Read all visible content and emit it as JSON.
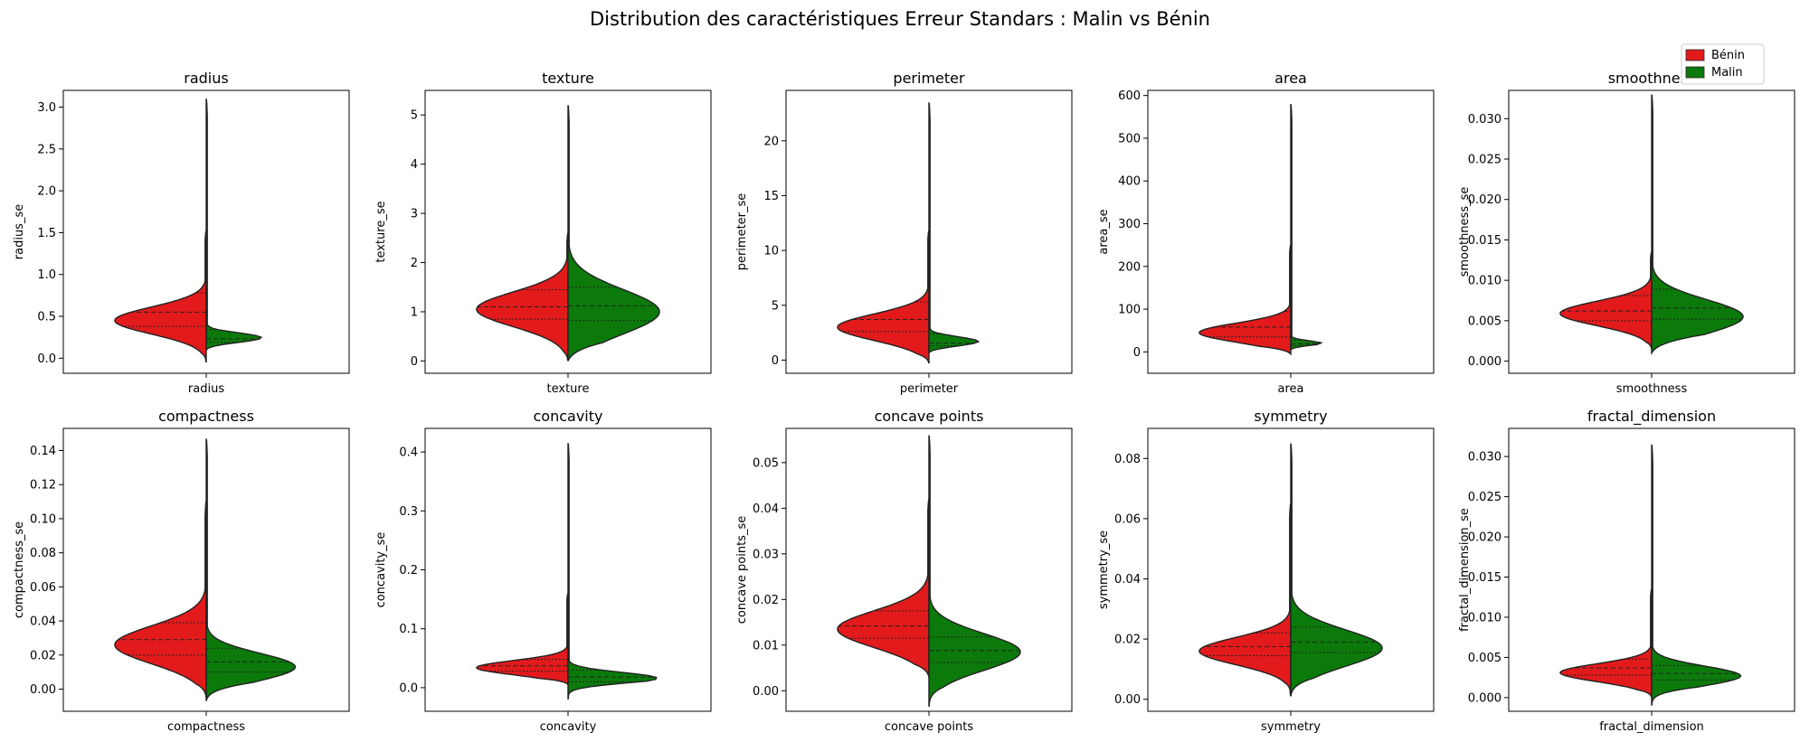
{
  "figure": {
    "title": "Distribution des caractéristiques Erreur Standars : Malin vs Bénin"
  },
  "legend": {
    "placement": "top-right",
    "items": [
      {
        "label": "Bénin",
        "color": "#e31a1c"
      },
      {
        "label": "Malin",
        "color": "#0b7a0b"
      }
    ]
  },
  "colors": {
    "benin": "#e31a1c",
    "malin": "#0b7a0b",
    "outline": "#222222"
  },
  "chart_data": [
    {
      "type": "violin",
      "title": "radius",
      "xlabel": "radius",
      "ylabel": "radius_se",
      "ylim": [
        -0.18,
        3.2
      ],
      "ticks": [
        0.0,
        0.5,
        1.0,
        1.5,
        2.0,
        2.5,
        3.0
      ],
      "tick_labels": [
        "0.0",
        "0.5",
        "1.0",
        "1.5",
        "2.0",
        "2.5",
        "3.0"
      ],
      "benin": {
        "min": -0.05,
        "max": 1.52,
        "width": 0.8,
        "peak": 0.45,
        "sigma": 0.16,
        "quartiles": [
          0.38,
          0.55,
          0.78
        ]
      },
      "malin": {
        "min": 0.1,
        "max": 3.1,
        "width": 0.78,
        "peak": 0.22,
        "sigma": 0.06,
        "quartiles": [
          0.19,
          0.23,
          0.34
        ]
      }
    },
    {
      "type": "violin",
      "title": "texture",
      "xlabel": "texture",
      "ylabel": "texture_se",
      "ylim": [
        -0.25,
        5.5
      ],
      "ticks": [
        0,
        1,
        2,
        3,
        4,
        5
      ],
      "tick_labels": [
        "0",
        "1",
        "2",
        "3",
        "4",
        "5"
      ],
      "benin": {
        "min": 0.0,
        "max": 2.6,
        "width": 0.8,
        "peak": 1.05,
        "sigma": 0.35,
        "quartiles": [
          0.85,
          1.1,
          1.45
        ]
      },
      "malin": {
        "min": 0.0,
        "max": 5.2,
        "width": 0.8,
        "peak": 1.0,
        "sigma": 0.45,
        "quartiles": [
          0.82,
          1.12,
          1.5
        ]
      }
    },
    {
      "type": "violin",
      "title": "perimeter",
      "xlabel": "perimeter",
      "ylabel": "perimeter_se",
      "ylim": [
        -1.2,
        24.6
      ],
      "ticks": [
        0,
        5,
        10,
        15,
        20
      ],
      "tick_labels": [
        "0",
        "5",
        "10",
        "15",
        "20"
      ],
      "benin": {
        "min": -0.3,
        "max": 11.8,
        "width": 0.8,
        "peak": 3.0,
        "sigma": 1.2,
        "quartiles": [
          2.6,
          3.7,
          5.3
        ]
      },
      "malin": {
        "min": 0.7,
        "max": 23.5,
        "width": 0.78,
        "peak": 1.5,
        "sigma": 0.45,
        "quartiles": [
          1.3,
          1.55,
          2.4
        ]
      }
    },
    {
      "type": "violin",
      "title": "area",
      "xlabel": "area",
      "ylabel": "area_se",
      "ylim": [
        -50,
        612
      ],
      "ticks": [
        0,
        100,
        200,
        300,
        400,
        500,
        600
      ],
      "tick_labels": [
        "0",
        "100",
        "200",
        "300",
        "400",
        "500",
        "600"
      ],
      "benin": {
        "min": -5,
        "max": 250,
        "width": 0.8,
        "peak": 45,
        "sigma": 22,
        "quartiles": [
          35,
          58,
          95
        ]
      },
      "malin": {
        "min": 5,
        "max": 580,
        "width": 0.78,
        "peak": 18,
        "sigma": 6,
        "quartiles": [
          15,
          19,
          28
        ]
      }
    },
    {
      "type": "violin",
      "title": "smoothness",
      "xlabel": "smoothness",
      "ylabel": "smoothness_se",
      "ylim": [
        -0.0015,
        0.0335
      ],
      "ticks": [
        0.0,
        0.005,
        0.01,
        0.015,
        0.02,
        0.025,
        0.03
      ],
      "tick_labels": [
        "0.000",
        "0.005",
        "0.010",
        "0.015",
        "0.020",
        "0.025",
        "0.030"
      ],
      "benin": {
        "min": 0.0015,
        "max": 0.0135,
        "width": 0.8,
        "peak": 0.0059,
        "sigma": 0.0015,
        "quartiles": [
          0.005,
          0.0062,
          0.0081
        ]
      },
      "malin": {
        "min": 0.001,
        "max": 0.033,
        "width": 0.8,
        "peak": 0.0055,
        "sigma": 0.0021,
        "quartiles": [
          0.0052,
          0.0066,
          0.0089
        ]
      }
    },
    {
      "type": "violin",
      "title": "compactness",
      "xlabel": "compactness",
      "ylabel": "compactness_se",
      "ylim": [
        -0.013,
        0.153
      ],
      "ticks": [
        0.0,
        0.02,
        0.04,
        0.06,
        0.08,
        0.1,
        0.12,
        0.14
      ],
      "tick_labels": [
        "0.00",
        "0.02",
        "0.04",
        "0.06",
        "0.08",
        "0.10",
        "0.12",
        "0.14"
      ],
      "benin": {
        "min": -0.005,
        "max": 0.11,
        "width": 0.8,
        "peak": 0.026,
        "sigma": 0.011,
        "quartiles": [
          0.02,
          0.029,
          0.039
        ]
      },
      "malin": {
        "min": -0.007,
        "max": 0.147,
        "width": 0.78,
        "peak": 0.013,
        "sigma": 0.008,
        "quartiles": [
          0.01,
          0.016,
          0.024
        ]
      }
    },
    {
      "type": "violin",
      "title": "concavity",
      "xlabel": "concavity",
      "ylabel": "concavity_se",
      "ylim": [
        -0.04,
        0.44
      ],
      "ticks": [
        0.0,
        0.1,
        0.2,
        0.3,
        0.4
      ],
      "tick_labels": [
        "0.0",
        "0.1",
        "0.2",
        "0.3",
        "0.4"
      ],
      "benin": {
        "min": 0.005,
        "max": 0.16,
        "width": 0.8,
        "peak": 0.034,
        "sigma": 0.012,
        "quartiles": [
          0.028,
          0.037,
          0.048
        ]
      },
      "malin": {
        "min": -0.02,
        "max": 0.415,
        "width": 0.78,
        "peak": 0.016,
        "sigma": 0.01,
        "quartiles": [
          0.01,
          0.018,
          0.03
        ]
      }
    },
    {
      "type": "violin",
      "title": "concave points",
      "xlabel": "concave points",
      "ylabel": "concave points_se",
      "ylim": [
        -0.0045,
        0.0575
      ],
      "ticks": [
        0.0,
        0.01,
        0.02,
        0.03,
        0.04,
        0.05
      ],
      "tick_labels": [
        "0.00",
        "0.01",
        "0.02",
        "0.03",
        "0.04",
        "0.05"
      ],
      "benin": {
        "min": 0.003,
        "max": 0.042,
        "width": 0.8,
        "peak": 0.0135,
        "sigma": 0.004,
        "quartiles": [
          0.0115,
          0.0142,
          0.0175
        ]
      },
      "malin": {
        "min": -0.0035,
        "max": 0.056,
        "width": 0.8,
        "peak": 0.0085,
        "sigma": 0.004,
        "quartiles": [
          0.0062,
          0.0088,
          0.0118
        ]
      }
    },
    {
      "type": "violin",
      "title": "symmetry",
      "xlabel": "symmetry",
      "ylabel": "symmetry_se",
      "ylim": [
        -0.004,
        0.09
      ],
      "ticks": [
        0.0,
        0.02,
        0.04,
        0.06,
        0.08
      ],
      "tick_labels": [
        "0.00",
        "0.02",
        "0.04",
        "0.06",
        "0.08"
      ],
      "benin": {
        "min": 0.001,
        "max": 0.065,
        "width": 0.8,
        "peak": 0.016,
        "sigma": 0.0045,
        "quartiles": [
          0.0145,
          0.0175,
          0.022
        ]
      },
      "malin": {
        "min": 0.001,
        "max": 0.085,
        "width": 0.8,
        "peak": 0.017,
        "sigma": 0.006,
        "quartiles": [
          0.0155,
          0.019,
          0.024
        ]
      }
    },
    {
      "type": "violin",
      "title": "fractal_dimension",
      "xlabel": "fractal_dimension",
      "ylabel": "fractal_dimension_se",
      "ylim": [
        -0.0017,
        0.0335
      ],
      "ticks": [
        0.0,
        0.005,
        0.01,
        0.015,
        0.02,
        0.025,
        0.03
      ],
      "tick_labels": [
        "0.000",
        "0.005",
        "0.010",
        "0.015",
        "0.020",
        "0.025",
        "0.030"
      ],
      "benin": {
        "min": 0.0,
        "max": 0.0135,
        "width": 0.8,
        "peak": 0.0031,
        "sigma": 0.0011,
        "quartiles": [
          0.0028,
          0.0037,
          0.0048
        ]
      },
      "malin": {
        "min": -0.001,
        "max": 0.0315,
        "width": 0.78,
        "peak": 0.0027,
        "sigma": 0.0012,
        "quartiles": [
          0.0022,
          0.003,
          0.004
        ]
      }
    }
  ]
}
